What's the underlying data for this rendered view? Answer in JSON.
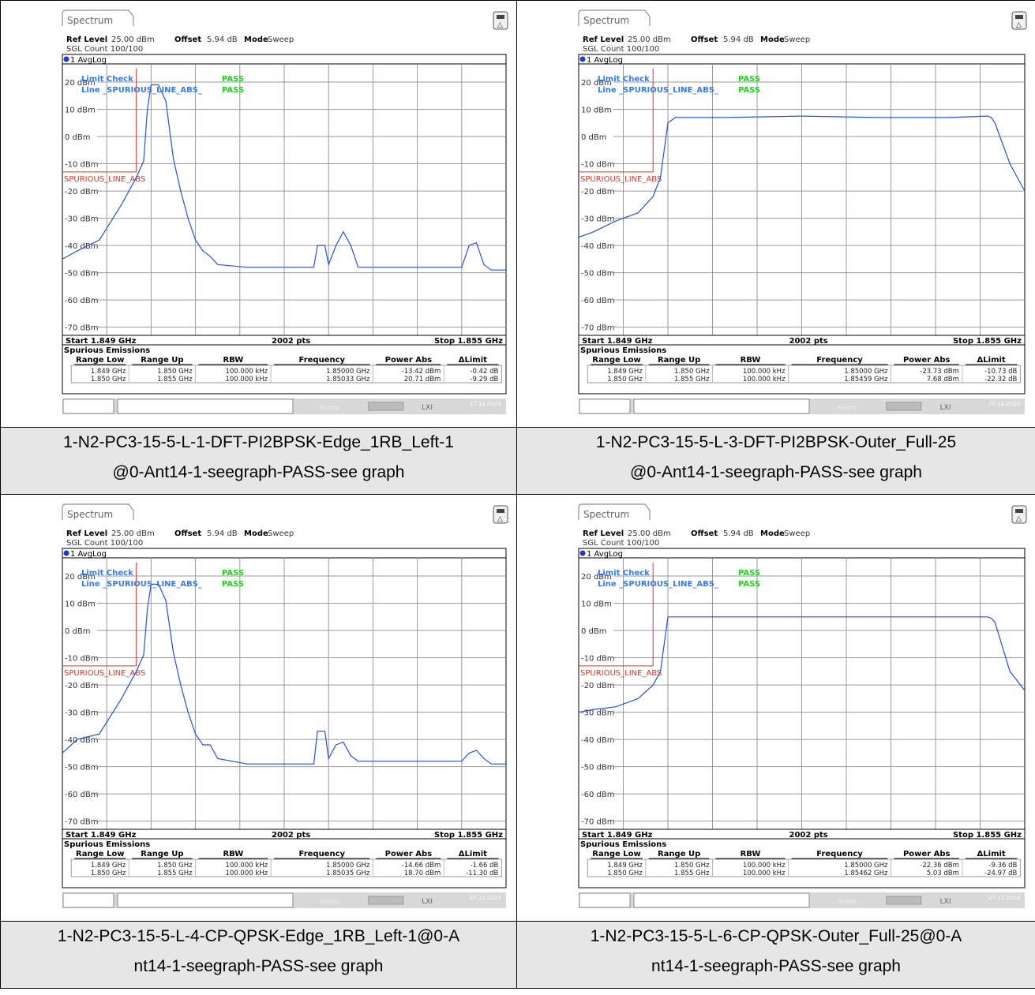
{
  "shared": {
    "tab_label": "Spectrum",
    "ref_level_label": "Ref Level",
    "ref_level_value": "25.00 dBm",
    "offset_label": "Offset",
    "offset_value": "5.94 dB",
    "mode_label": "Mode",
    "mode_value": "Sweep",
    "sgl_count": "SGL Count 100/100",
    "trace_label": "1 AvgLog",
    "limit_check_label": "Limit Check",
    "limit_check_result": "PASS",
    "line_label": "Line _SPURIOUS_LINE_ABS_",
    "line_result": "PASS",
    "limit_line_name": "SPURIOUS_LINE_ABS",
    "start_label": "Start 1.849 GHz",
    "pts_label": "2002 pts",
    "stop_label": "Stop 1.855 GHz",
    "table_title": "Spurious Emissions",
    "table_headers": [
      "Range Low",
      "Range Up",
      "RBW",
      "Frequency",
      "Power Abs",
      "ΔLimit"
    ],
    "status_text": "Ready",
    "date_text": "27.11.2023"
  },
  "panels": [
    {
      "caption": [
        "1-N2-PC3-15-5-L-1-DFT-PI2BPSK-Edge_1RB_Left-1",
        "@0-Ant14-1-seegraph-PASS-see graph"
      ],
      "rows": [
        [
          "1.849 GHz",
          "1.850 GHz",
          "100.000 kHz",
          "1.85000 GHz",
          "-13.42 dBm",
          "-0.42 dB"
        ],
        [
          "1.850 GHz",
          "1.855 GHz",
          "100.000 kHz",
          "1.85033 GHz",
          "20.71 dBm",
          "-9.29 dB"
        ]
      ]
    },
    {
      "caption": [
        "1-N2-PC3-15-5-L-3-DFT-PI2BPSK-Outer_Full-25",
        "@0-Ant14-1-seegraph-PASS-see graph"
      ],
      "rows": [
        [
          "1.849 GHz",
          "1.850 GHz",
          "100.000 kHz",
          "1.85000 GHz",
          "-23.73 dBm",
          "-10.73 dB"
        ],
        [
          "1.850 GHz",
          "1.855 GHz",
          "100.000 kHz",
          "1.85459 GHz",
          "7.68 dBm",
          "-22.32 dB"
        ]
      ]
    },
    {
      "caption": [
        "1-N2-PC3-15-5-L-4-CP-QPSK-Edge_1RB_Left-1@0-A",
        "nt14-1-seegraph-PASS-see graph"
      ],
      "rows": [
        [
          "1.849 GHz",
          "1.850 GHz",
          "100.000 kHz",
          "1.85000 GHz",
          "-14.66 dBm",
          "-1.66 dB"
        ],
        [
          "1.850 GHz",
          "1.855 GHz",
          "100.000 kHz",
          "1.85035 GHz",
          "18.70 dBm",
          "-11.30 dB"
        ]
      ]
    },
    {
      "caption": [
        "1-N2-PC3-15-5-L-6-CP-QPSK-Outer_Full-25@0-A",
        "nt14-1-seegraph-PASS-see graph"
      ],
      "rows": [
        [
          "1.849 GHz",
          "1.850 GHz",
          "100.000 kHz",
          "1.85000 GHz",
          "-22.36 dBm",
          "-9.36 dB"
        ],
        [
          "1.850 GHz",
          "1.855 GHz",
          "100.000 kHz",
          "1.85462 GHz",
          "5.03 dBm",
          "-24.97 dB"
        ]
      ]
    }
  ],
  "chart_data": [
    {
      "type": "line",
      "xlabel": "",
      "ylabel": "",
      "xlim": [
        1.849,
        1.855
      ],
      "ylim": [
        -75,
        25
      ],
      "y_ticks": [
        "20 dBm",
        "10 dBm",
        "0 dBm",
        "-10 dBm",
        "-20 dBm",
        "-30 dBm",
        "-40 dBm",
        "-50 dBm",
        "-60 dBm",
        "-70 dBm"
      ],
      "limit_line": {
        "x": [
          1.849,
          1.85,
          1.85
        ],
        "y": [
          -13,
          -13,
          25
        ]
      },
      "series": [
        {
          "x": [
            1.849,
            1.8492,
            1.8495,
            1.8498,
            1.85,
            1.8501,
            1.85015,
            1.8502,
            1.8503,
            1.8504,
            1.8505,
            1.8506,
            1.8507,
            1.8508,
            1.8509,
            1.851,
            1.8511,
            1.8515,
            1.852,
            1.8524,
            1.85245,
            1.85255,
            1.8526,
            1.8527,
            1.8528,
            1.8529,
            1.853,
            1.8535,
            1.854,
            1.8544,
            1.8545,
            1.8546,
            1.8547,
            1.8548,
            1.855
          ],
          "y": [
            -45,
            -42,
            -38,
            -25,
            -15,
            -9,
            10,
            19,
            19,
            13,
            -8,
            -20,
            -30,
            -38,
            -42,
            -44,
            -47,
            -48,
            -48,
            -48,
            -40,
            -40,
            -47,
            -40,
            -35,
            -40,
            -48,
            -48,
            -48,
            -48,
            -40,
            -39,
            -47,
            -49,
            -49
          ]
        }
      ]
    },
    {
      "type": "line",
      "xlabel": "",
      "ylabel": "",
      "xlim": [
        1.849,
        1.855
      ],
      "ylim": [
        -75,
        25
      ],
      "y_ticks": [
        "20 dBm",
        "10 dBm",
        "0 dBm",
        "-10 dBm",
        "-20 dBm",
        "-30 dBm",
        "-40 dBm",
        "-50 dBm",
        "-60 dBm",
        "-70 dBm"
      ],
      "limit_line": {
        "x": [
          1.849,
          1.85,
          1.85
        ],
        "y": [
          -13,
          -13,
          25
        ]
      },
      "series": [
        {
          "x": [
            1.849,
            1.8492,
            1.8495,
            1.8498,
            1.85,
            1.8501,
            1.8502,
            1.8503,
            1.851,
            1.852,
            1.853,
            1.854,
            1.8545,
            1.85455,
            1.8546,
            1.8548,
            1.855
          ],
          "y": [
            -37,
            -35,
            -31,
            -28,
            -22,
            -15,
            5,
            7,
            7,
            7.5,
            7,
            7,
            7.5,
            7,
            5,
            -10,
            -20
          ]
        }
      ]
    },
    {
      "type": "line",
      "xlabel": "",
      "ylabel": "",
      "xlim": [
        1.849,
        1.855
      ],
      "ylim": [
        -75,
        25
      ],
      "y_ticks": [
        "20 dBm",
        "10 dBm",
        "0 dBm",
        "-10 dBm",
        "-20 dBm",
        "-30 dBm",
        "-40 dBm",
        "-50 dBm",
        "-60 dBm",
        "-70 dBm"
      ],
      "limit_line": {
        "x": [
          1.849,
          1.85,
          1.85
        ],
        "y": [
          -13,
          -13,
          25
        ]
      },
      "series": [
        {
          "x": [
            1.849,
            1.8492,
            1.8495,
            1.8498,
            1.85,
            1.8501,
            1.85015,
            1.8502,
            1.8503,
            1.8504,
            1.8505,
            1.8506,
            1.8507,
            1.8508,
            1.8509,
            1.851,
            1.8511,
            1.8515,
            1.852,
            1.8524,
            1.85245,
            1.85255,
            1.8526,
            1.8527,
            1.8528,
            1.8529,
            1.853,
            1.8535,
            1.854,
            1.8544,
            1.8545,
            1.8546,
            1.8547,
            1.8548,
            1.855
          ],
          "y": [
            -45,
            -40,
            -38,
            -25,
            -15,
            -9,
            8,
            17,
            17,
            11,
            -8,
            -20,
            -30,
            -38,
            -42,
            -42,
            -47,
            -49,
            -49,
            -49,
            -37,
            -37,
            -47,
            -42,
            -41,
            -46,
            -48,
            -48,
            -48,
            -48,
            -45,
            -44,
            -47,
            -49,
            -49
          ]
        }
      ]
    },
    {
      "type": "line",
      "xlabel": "",
      "ylabel": "",
      "xlim": [
        1.849,
        1.855
      ],
      "ylim": [
        -75,
        25
      ],
      "y_ticks": [
        "20 dBm",
        "10 dBm",
        "0 dBm",
        "-10 dBm",
        "-20 dBm",
        "-30 dBm",
        "-40 dBm",
        "-50 dBm",
        "-60 dBm",
        "-70 dBm"
      ],
      "limit_line": {
        "x": [
          1.849,
          1.85,
          1.85
        ],
        "y": [
          -13,
          -13,
          25
        ]
      },
      "series": [
        {
          "x": [
            1.849,
            1.8492,
            1.8495,
            1.8498,
            1.85,
            1.8501,
            1.8502,
            1.8503,
            1.851,
            1.852,
            1.853,
            1.854,
            1.8545,
            1.85455,
            1.8546,
            1.8548,
            1.855
          ],
          "y": [
            -30,
            -29,
            -28,
            -25,
            -20,
            -15,
            5,
            5,
            5,
            5,
            5,
            5,
            5,
            4.5,
            3,
            -15,
            -22
          ]
        }
      ]
    }
  ]
}
